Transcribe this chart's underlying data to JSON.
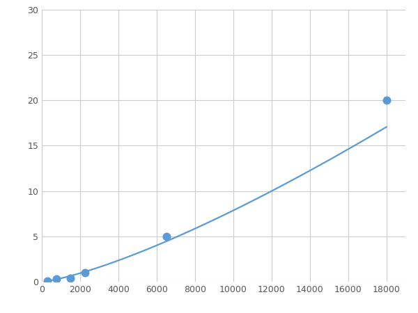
{
  "x_points": [
    300,
    750,
    1500,
    2250,
    6500,
    18000
  ],
  "y_points": [
    0.1,
    0.3,
    0.35,
    1.0,
    5.0,
    20.0
  ],
  "line_color": "#5b9bd5",
  "marker_color": "#5b9bd5",
  "marker_size": 5,
  "linewidth": 1.6,
  "xlim": [
    0,
    19000
  ],
  "ylim": [
    0,
    30
  ],
  "xticks": [
    0,
    2000,
    4000,
    6000,
    8000,
    10000,
    12000,
    14000,
    16000,
    18000
  ],
  "yticks": [
    0,
    5,
    10,
    15,
    20,
    25,
    30
  ],
  "grid_color": "#cccccc",
  "background_color": "#ffffff",
  "figsize": [
    6.0,
    4.5
  ],
  "dpi": 100
}
